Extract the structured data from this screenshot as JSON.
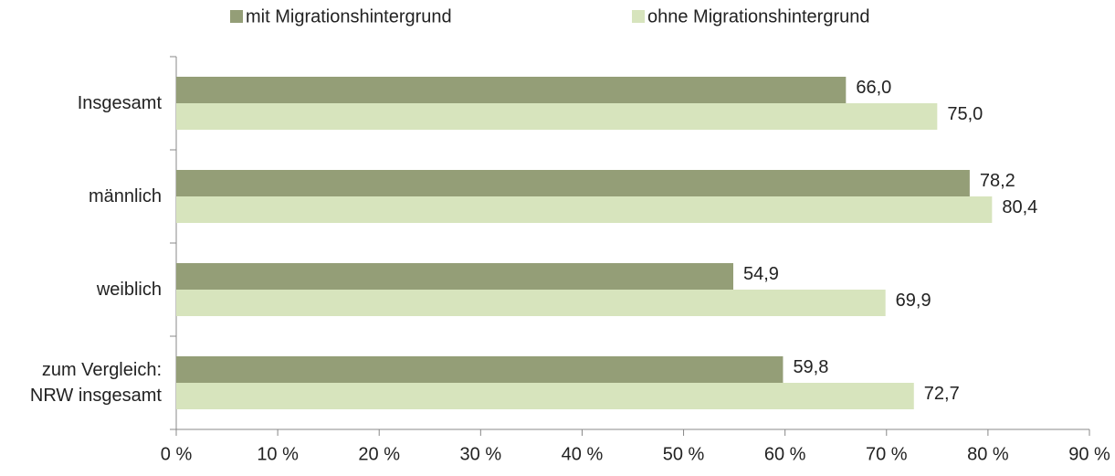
{
  "chart_data": {
    "type": "bar",
    "orientation": "horizontal",
    "categories": [
      "Insgesamt",
      "männlich",
      "weiblich",
      "zum Vergleich: NRW insgesamt"
    ],
    "series": [
      {
        "name": "mit Migrationshintergrund",
        "color": "#949e77",
        "values": [
          66.0,
          78.2,
          54.9,
          59.8
        ],
        "value_labels": [
          "66,0",
          "78,2",
          "54,9",
          "59,8"
        ]
      },
      {
        "name": "ohne Migrationshintergrund",
        "color": "#d7e4bd",
        "values": [
          75.0,
          80.4,
          69.9,
          72.7
        ],
        "value_labels": [
          "75,0",
          "80,4",
          "69,9",
          "72,7"
        ]
      }
    ],
    "xlim": [
      0,
      90
    ],
    "xticks": [
      {
        "value": 0,
        "label": "0 %"
      },
      {
        "value": 10,
        "label": "10 %"
      },
      {
        "value": 20,
        "label": "20 %"
      },
      {
        "value": 30,
        "label": "30 %"
      },
      {
        "value": 40,
        "label": "40 %"
      },
      {
        "value": 50,
        "label": "50 %"
      },
      {
        "value": 60,
        "label": "60 %"
      },
      {
        "value": 70,
        "label": "70 %"
      },
      {
        "value": 80,
        "label": "80 %"
      },
      {
        "value": 90,
        "label": "90 %"
      }
    ],
    "legend": "top",
    "grid": false
  }
}
